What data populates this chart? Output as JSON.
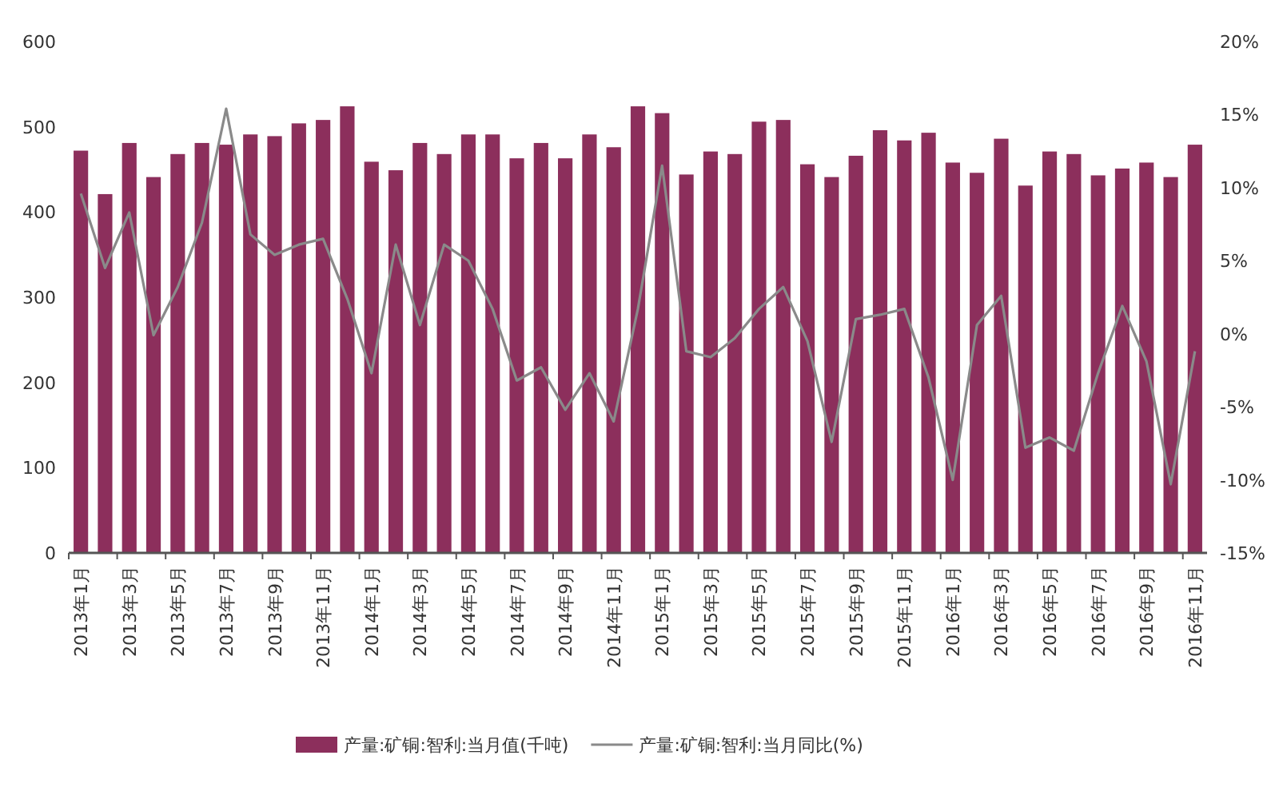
{
  "chart_data": {
    "type": "bar",
    "categories": [
      "2013年1月",
      null,
      "2013年3月",
      null,
      "2013年5月",
      null,
      "2013年7月",
      null,
      "2013年9月",
      null,
      "2013年11月",
      null,
      "2014年1月",
      null,
      "2014年3月",
      null,
      "2014年5月",
      null,
      "2014年7月",
      null,
      "2014年9月",
      null,
      "2014年11月",
      null,
      "2015年1月",
      null,
      "2015年3月",
      null,
      "2015年5月",
      null,
      "2015年7月",
      null,
      "2015年9月",
      null,
      "2015年11月",
      null,
      "2016年1月",
      null,
      "2016年3月",
      null,
      "2016年5月",
      null,
      "2016年7月",
      null,
      "2016年9月",
      null,
      "2016年11月"
    ],
    "series": [
      {
        "name": "产量:矿铜:智利:当月值(千吨)",
        "color": "#8c2f5c",
        "values": [
          472,
          421,
          481,
          441,
          468,
          481,
          479,
          491,
          489,
          504,
          508,
          524,
          459,
          449,
          481,
          468,
          491,
          491,
          463,
          481,
          463,
          491,
          476,
          524,
          516,
          444,
          471,
          468,
          506,
          508,
          456,
          441,
          466,
          496,
          484,
          493,
          458,
          446,
          486,
          431,
          471,
          468,
          443,
          451,
          458,
          441,
          479
        ]
      },
      {
        "name": "产量:矿铜:智利:当月同比(%)",
        "type": "line",
        "axis": "y2",
        "color": "#8a8a8a",
        "values": [
          9.6,
          4.5,
          8.3,
          -0.1,
          3.2,
          7.6,
          15.4,
          6.8,
          5.4,
          6.1,
          6.5,
          2.4,
          -2.7,
          6.1,
          0.6,
          6.1,
          5.0,
          1.7,
          -3.2,
          -2.3,
          -5.2,
          -2.7,
          -6.0,
          1.7,
          11.5,
          -1.2,
          -1.6,
          -0.3,
          1.7,
          3.2,
          -0.5,
          -7.4,
          1.0,
          1.3,
          1.7,
          -3.0,
          -10.0,
          0.6,
          2.6,
          -7.8,
          -7.1,
          -8.0,
          -2.7,
          1.9,
          -1.9,
          -10.3,
          -1.2
        ]
      }
    ],
    "ylim": [
      0,
      600
    ],
    "yticks": [
      0,
      100,
      200,
      300,
      400,
      500,
      600
    ],
    "y2lim": [
      -15,
      20
    ],
    "y2ticks": [
      {
        "value": -15,
        "label": "-15%"
      },
      {
        "value": -10,
        "label": "-10%"
      },
      {
        "value": -5,
        "label": "-5%"
      },
      {
        "value": 0,
        "label": "0%"
      },
      {
        "value": 5,
        "label": "5%"
      },
      {
        "value": 10,
        "label": "10%"
      },
      {
        "value": 15,
        "label": "15%"
      },
      {
        "value": 20,
        "label": "20%"
      }
    ],
    "legend": "bottom"
  }
}
